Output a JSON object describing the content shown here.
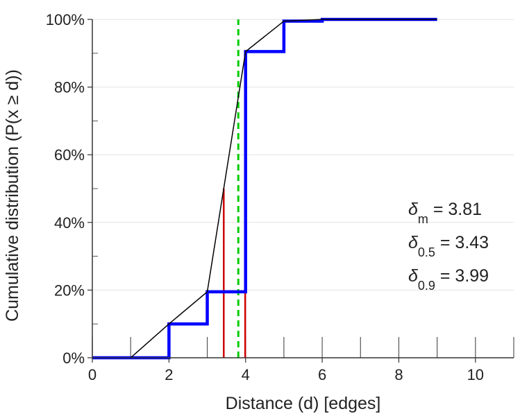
{
  "chart_data": {
    "type": "line",
    "xlabel": "Distance (d) [edges]",
    "ylabel": "Cumulative distribution (P(x ≥ d))",
    "xlim": [
      0,
      11
    ],
    "ylim": [
      0,
      1
    ],
    "x_ticks": [
      0,
      2,
      4,
      6,
      8,
      10
    ],
    "x_tick_labels": [
      "0",
      "2",
      "4",
      "6",
      "8",
      "10"
    ],
    "y_ticks": [
      0,
      0.2,
      0.4,
      0.6,
      0.8,
      1.0
    ],
    "y_tick_labels": [
      "0%",
      "20%",
      "40%",
      "60%",
      "80%",
      "100%"
    ],
    "grid": "horizontal",
    "series": [
      {
        "style": "step",
        "color": "#0000ff",
        "x": [
          0,
          2,
          3,
          4,
          5,
          6,
          9
        ],
        "y": [
          0,
          0.1,
          0.195,
          0.905,
          0.995,
          1.0,
          1.0
        ]
      },
      {
        "style": "line",
        "color": "#000000",
        "x": [
          1,
          2,
          3,
          4,
          5,
          6,
          9
        ],
        "y": [
          0,
          0.1,
          0.195,
          0.905,
          0.995,
          1.0,
          1.0
        ]
      }
    ],
    "vlines": [
      {
        "x": 3.43,
        "y_top": 0.5,
        "color": "#cc0000",
        "style": "solid"
      },
      {
        "x": 3.99,
        "y_top": 0.9,
        "color": "#cc0000",
        "style": "solid"
      },
      {
        "x": 3.81,
        "y_top": 1.0,
        "color": "#00cc00",
        "style": "dashed"
      }
    ],
    "annotations": [
      {
        "symbol": "δ",
        "sub": "m",
        "text": " = 3.81"
      },
      {
        "symbol": "δ",
        "sub": "0.5",
        "text": " = 3.43"
      },
      {
        "symbol": "δ",
        "sub": "0.9",
        "text": " = 3.99"
      }
    ]
  }
}
